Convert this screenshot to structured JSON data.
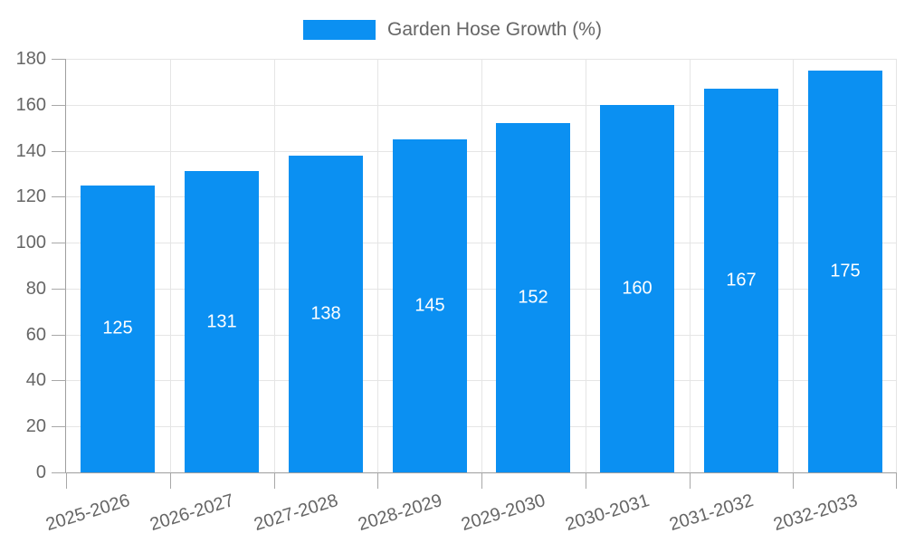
{
  "chart_data": {
    "type": "bar",
    "title": "Garden Hose Growth (%)",
    "legend": {
      "label": "Garden Hose Growth (%)",
      "position": "top"
    },
    "categories": [
      "2025-2026",
      "2026-2027",
      "2027-2028",
      "2028-2029",
      "2029-2030",
      "2030-2031",
      "2031-2032",
      "2032-2033"
    ],
    "series": [
      {
        "name": "Garden Hose Growth (%)",
        "values": [
          125,
          131,
          138,
          145,
          152,
          160,
          167,
          175
        ]
      }
    ],
    "xlabel": "",
    "ylabel": "",
    "ylim": [
      0,
      180
    ],
    "ytick_step": 20,
    "yticks": [
      "0",
      "20",
      "40",
      "60",
      "80",
      "100",
      "120",
      "140",
      "160",
      "180"
    ],
    "grid": true,
    "value_labels_position": "inside-center",
    "x_label_rotation_deg": -17
  },
  "colors": {
    "bar": "#0b90f2",
    "grid": "#e5e5e5",
    "axis": "#9e9e9e",
    "tick": "#a8a8a8",
    "tick_label": "#666666",
    "legend_text": "#666666",
    "value_label": "#ffffff",
    "background": "#ffffff"
  }
}
